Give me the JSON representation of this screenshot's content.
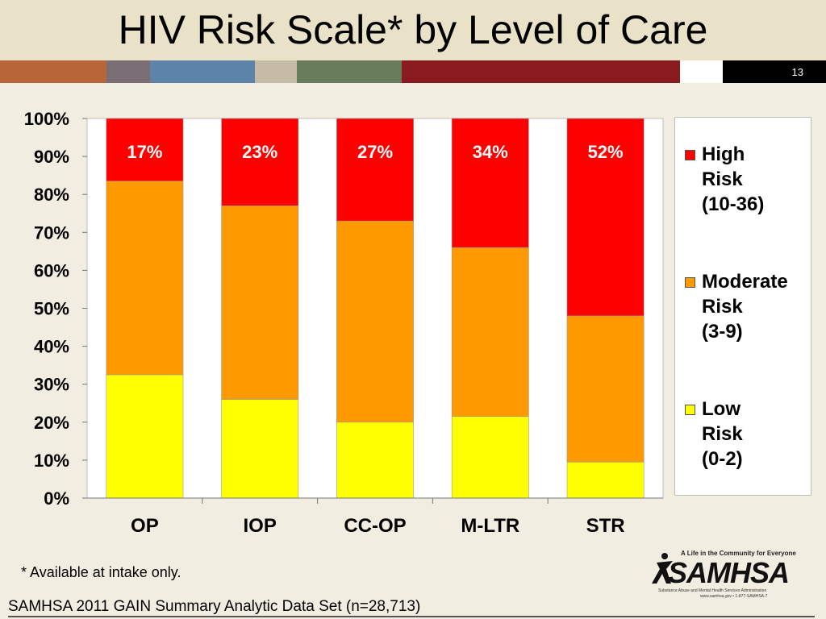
{
  "slide": {
    "title": "HIV Risk Scale* by Level of Care",
    "slide_number": "13",
    "footnote": "* Available at intake only.",
    "source": "SAMHSA 2011 GAIN Summary Analytic Data Set (n=28,713)",
    "color_band": [
      "#b8653a",
      "#7a6d73",
      "#5d84a8",
      "#c6bba6",
      "#687c5b",
      "#891b1e",
      "#ffffff",
      "#000000"
    ],
    "logo": {
      "tagline": "A Life in the Community for Everyone",
      "wordmark": "SAMHSA",
      "subtitle": "Substance Abuse and Mental Health Services Administration",
      "url": "www.samhsa.gov • 1-877-SAMHSA-7"
    }
  },
  "chart_data": {
    "type": "bar",
    "stacked": true,
    "percent_stacked": true,
    "categories": [
      "OP",
      "IOP",
      "CC-OP",
      "M-LTR",
      "STR"
    ],
    "series": [
      {
        "name": "Low Risk (0-2)",
        "color": "#ffff00",
        "values": [
          32.5,
          26,
          20,
          21.5,
          9.5
        ]
      },
      {
        "name": "Moderate Risk (3-9)",
        "color": "#ff9900",
        "values": [
          51,
          51,
          53,
          44.5,
          38.5
        ]
      },
      {
        "name": "High Risk (10-36)",
        "color": "#ff0000",
        "values": [
          16.5,
          23,
          27,
          34,
          52
        ],
        "labels": [
          "17%",
          "23%",
          "27%",
          "34%",
          "52%"
        ]
      }
    ],
    "y_ticks": [
      "0%",
      "10%",
      "20%",
      "30%",
      "40%",
      "50%",
      "60%",
      "70%",
      "80%",
      "90%",
      "100%"
    ],
    "ylim": [
      0,
      100
    ],
    "grid": false,
    "legend_position": "right",
    "legend": [
      {
        "label": "High\nRisk\n(10-36)",
        "color": "#ff0000"
      },
      {
        "label": "Moderate\nRisk\n(3-9)",
        "color": "#ff9900"
      },
      {
        "label": "Low\nRisk\n(0-2)",
        "color": "#ffff00"
      }
    ]
  }
}
